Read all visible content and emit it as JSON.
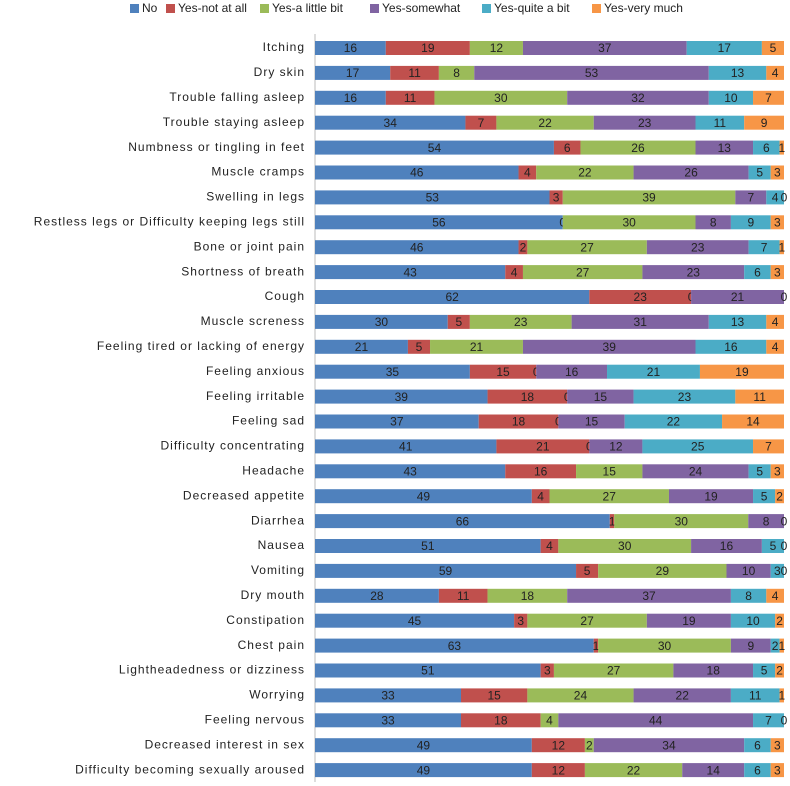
{
  "chart_data": {
    "type": "stacked-bar-100",
    "orientation": "horizontal",
    "categories": [
      "Itching",
      "Dry skin",
      "Trouble falling asleep",
      "Trouble staying asleep",
      "Numbness or tingling in feet",
      "Muscle cramps",
      "Swelling in legs",
      "Restless legs or Difficulty keeping legs still",
      "Bone or joint pain",
      "Shortness of breath",
      "Cough",
      "Muscle screness",
      "Feeling tired or lacking of energy",
      "Feeling anxious",
      "Feeling irritable",
      "Feeling sad",
      "Difficulty concentrating",
      "Headache",
      "Decreased appetite",
      "Diarrhea",
      "Nausea",
      "Vomiting",
      "Dry mouth",
      "Constipation",
      "Chest pain",
      "Lightheadedness or dizziness",
      "Worrying",
      "Feeling nervous",
      "Decreased interest in sex",
      "Difficulty becoming sexually aroused"
    ],
    "series": [
      {
        "name": "No",
        "color": "#4f81bd",
        "values": [
          16,
          17,
          16,
          34,
          54,
          46,
          53,
          56,
          46,
          43,
          62,
          30,
          21,
          35,
          39,
          37,
          41,
          43,
          49,
          66,
          51,
          59,
          28,
          45,
          63,
          51,
          33,
          33,
          49,
          49
        ]
      },
      {
        "name": "Yes-not at all",
        "color": "#c0504d",
        "values": [
          19,
          11,
          11,
          7,
          6,
          4,
          3,
          0,
          2,
          4,
          23,
          5,
          5,
          15,
          18,
          18,
          21,
          16,
          4,
          1,
          4,
          5,
          11,
          3,
          1,
          3,
          15,
          18,
          12,
          12
        ]
      },
      {
        "name": "Yes-a little bit",
        "color": "#9bbb59",
        "values": [
          12,
          8,
          30,
          22,
          26,
          22,
          39,
          30,
          27,
          27,
          0,
          23,
          21,
          0,
          0,
          0,
          0,
          15,
          27,
          30,
          30,
          29,
          18,
          27,
          30,
          27,
          24,
          4,
          2,
          22
        ]
      },
      {
        "name": "Yes-somewhat",
        "color": "#8064a2",
        "values": [
          37,
          53,
          32,
          23,
          13,
          26,
          7,
          8,
          23,
          23,
          21,
          31,
          39,
          16,
          15,
          15,
          12,
          24,
          19,
          8,
          16,
          10,
          37,
          19,
          9,
          18,
          22,
          44,
          34,
          14
        ]
      },
      {
        "name": "Yes-quite a bit",
        "color": "#4bacc6",
        "values": [
          17,
          13,
          10,
          11,
          6,
          5,
          4,
          9,
          7,
          6,
          0,
          13,
          16,
          21,
          23,
          22,
          25,
          5,
          5,
          0,
          5,
          3,
          8,
          10,
          2,
          5,
          11,
          7,
          6,
          6
        ]
      },
      {
        "name": "Yes-very much",
        "color": "#f79646",
        "values": [
          5,
          4,
          7,
          9,
          1,
          3,
          0,
          3,
          1,
          3,
          null,
          4,
          4,
          19,
          11,
          14,
          7,
          3,
          2,
          null,
          0,
          0,
          4,
          2,
          1,
          2,
          1,
          0,
          3,
          3
        ]
      }
    ]
  }
}
